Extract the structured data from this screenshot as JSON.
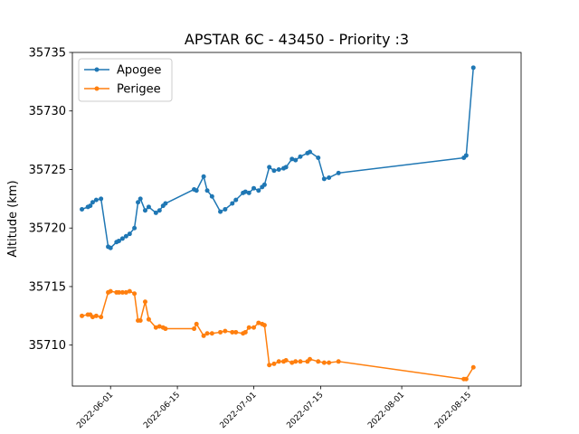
{
  "chart_data": {
    "type": "line",
    "title": "APSTAR 6C - 43450 - Priority :3",
    "xlabel": "",
    "ylabel": "Altitude (km)",
    "x_type": "date",
    "xlim": [
      "2022-05-24",
      "2022-08-26"
    ],
    "ylim": [
      35706.5,
      35735
    ],
    "yticks": [
      35710,
      35715,
      35720,
      35725,
      35730,
      35735
    ],
    "xticks": [
      "2022-06-01",
      "2022-06-15",
      "2022-07-01",
      "2022-07-15",
      "2022-08-01",
      "2022-08-15"
    ],
    "grid": false,
    "legend_position": "top-left",
    "colors": {
      "Apogee": "#1f77b4",
      "Perigee": "#ff7f0e"
    },
    "series": [
      {
        "name": "Apogee",
        "points": [
          [
            "2022-05-26T00:00",
            35721.6
          ],
          [
            "2022-05-27T06:00",
            35721.8
          ],
          [
            "2022-05-27T18:00",
            35721.9
          ],
          [
            "2022-05-28T06:00",
            35722.2
          ],
          [
            "2022-05-29T00:00",
            35722.4
          ],
          [
            "2022-05-30T00:00",
            35722.5
          ],
          [
            "2022-05-31T12:00",
            35718.4
          ],
          [
            "2022-06-01T00:00",
            35718.3
          ],
          [
            "2022-06-02T06:00",
            35718.8
          ],
          [
            "2022-06-02T18:00",
            35718.9
          ],
          [
            "2022-06-03T12:00",
            35719.1
          ],
          [
            "2022-06-04T06:00",
            35719.3
          ],
          [
            "2022-06-05T00:00",
            35719.5
          ],
          [
            "2022-06-06T00:00",
            35720.0
          ],
          [
            "2022-06-06T18:00",
            35722.2
          ],
          [
            "2022-06-07T06:00",
            35722.5
          ],
          [
            "2022-06-08T06:00",
            35721.5
          ],
          [
            "2022-06-09T00:00",
            35721.8
          ],
          [
            "2022-06-10T12:00",
            35721.3
          ],
          [
            "2022-06-11T06:00",
            35721.5
          ],
          [
            "2022-06-12T00:00",
            35721.9
          ],
          [
            "2022-06-12T12:00",
            35722.1
          ],
          [
            "2022-06-18T12:00",
            35723.3
          ],
          [
            "2022-06-19T00:00",
            35723.2
          ],
          [
            "2022-06-20T12:00",
            35724.4
          ],
          [
            "2022-06-21T06:00",
            35723.2
          ],
          [
            "2022-06-22T06:00",
            35722.7
          ],
          [
            "2022-06-24T00:00",
            35721.4
          ],
          [
            "2022-06-25T00:00",
            35721.6
          ],
          [
            "2022-06-26T12:00",
            35722.1
          ],
          [
            "2022-06-27T06:00",
            35722.4
          ],
          [
            "2022-06-28T18:00",
            35723.0
          ],
          [
            "2022-06-29T06:00",
            35723.1
          ],
          [
            "2022-06-30T00:00",
            35723.0
          ],
          [
            "2022-07-01T00:00",
            35723.4
          ],
          [
            "2022-07-02T00:00",
            35723.2
          ],
          [
            "2022-07-02T18:00",
            35723.5
          ],
          [
            "2022-07-03T06:00",
            35723.7
          ],
          [
            "2022-07-04T06:00",
            35725.2
          ],
          [
            "2022-07-05T06:00",
            35724.9
          ],
          [
            "2022-07-06T06:00",
            35725.0
          ],
          [
            "2022-07-07T06:00",
            35725.1
          ],
          [
            "2022-07-07T18:00",
            35725.2
          ],
          [
            "2022-07-09T00:00",
            35725.9
          ],
          [
            "2022-07-09T18:00",
            35725.8
          ],
          [
            "2022-07-10T18:00",
            35726.1
          ],
          [
            "2022-07-12T06:00",
            35726.4
          ],
          [
            "2022-07-12T18:00",
            35726.5
          ],
          [
            "2022-07-14T12:00",
            35726.0
          ],
          [
            "2022-07-15T18:00",
            35724.2
          ],
          [
            "2022-07-16T18:00",
            35724.3
          ],
          [
            "2022-07-18T18:00",
            35724.7
          ],
          [
            "2022-08-14T00:00",
            35726.0
          ],
          [
            "2022-08-14T12:00",
            35726.2
          ],
          [
            "2022-08-16T00:00",
            35733.7
          ]
        ]
      },
      {
        "name": "Perigee",
        "points": [
          [
            "2022-05-26T00:00",
            35712.5
          ],
          [
            "2022-05-27T06:00",
            35712.6
          ],
          [
            "2022-05-27T18:00",
            35712.6
          ],
          [
            "2022-05-28T06:00",
            35712.4
          ],
          [
            "2022-05-29T00:00",
            35712.5
          ],
          [
            "2022-05-30T00:00",
            35712.4
          ],
          [
            "2022-05-31T12:00",
            35714.5
          ],
          [
            "2022-06-01T00:00",
            35714.6
          ],
          [
            "2022-06-02T06:00",
            35714.5
          ],
          [
            "2022-06-02T18:00",
            35714.5
          ],
          [
            "2022-06-03T12:00",
            35714.5
          ],
          [
            "2022-06-04T06:00",
            35714.5
          ],
          [
            "2022-06-05T00:00",
            35714.6
          ],
          [
            "2022-06-06T00:00",
            35714.4
          ],
          [
            "2022-06-06T18:00",
            35712.1
          ],
          [
            "2022-06-07T06:00",
            35712.1
          ],
          [
            "2022-06-08T06:00",
            35713.7
          ],
          [
            "2022-06-09T00:00",
            35712.2
          ],
          [
            "2022-06-10T12:00",
            35711.5
          ],
          [
            "2022-06-11T06:00",
            35711.6
          ],
          [
            "2022-06-12T00:00",
            35711.5
          ],
          [
            "2022-06-12T12:00",
            35711.4
          ],
          [
            "2022-06-18T12:00",
            35711.4
          ],
          [
            "2022-06-19T00:00",
            35711.8
          ],
          [
            "2022-06-20T12:00",
            35710.8
          ],
          [
            "2022-06-21T06:00",
            35711.0
          ],
          [
            "2022-06-22T06:00",
            35711.0
          ],
          [
            "2022-06-24T00:00",
            35711.1
          ],
          [
            "2022-06-25T00:00",
            35711.2
          ],
          [
            "2022-06-26T12:00",
            35711.1
          ],
          [
            "2022-06-27T06:00",
            35711.1
          ],
          [
            "2022-06-28T18:00",
            35711.0
          ],
          [
            "2022-06-29T06:00",
            35711.1
          ],
          [
            "2022-06-30T00:00",
            35711.5
          ],
          [
            "2022-07-01T00:00",
            35711.5
          ],
          [
            "2022-07-02T00:00",
            35711.9
          ],
          [
            "2022-07-02T18:00",
            35711.8
          ],
          [
            "2022-07-03T06:00",
            35711.7
          ],
          [
            "2022-07-04T06:00",
            35708.3
          ],
          [
            "2022-07-05T06:00",
            35708.4
          ],
          [
            "2022-07-06T06:00",
            35708.6
          ],
          [
            "2022-07-07T06:00",
            35708.6
          ],
          [
            "2022-07-07T18:00",
            35708.7
          ],
          [
            "2022-07-09T00:00",
            35708.5
          ],
          [
            "2022-07-09T18:00",
            35708.6
          ],
          [
            "2022-07-10T18:00",
            35708.6
          ],
          [
            "2022-07-12T06:00",
            35708.6
          ],
          [
            "2022-07-12T18:00",
            35708.8
          ],
          [
            "2022-07-14T12:00",
            35708.6
          ],
          [
            "2022-07-15T18:00",
            35708.5
          ],
          [
            "2022-07-16T18:00",
            35708.5
          ],
          [
            "2022-07-18T18:00",
            35708.6
          ],
          [
            "2022-08-14T00:00",
            35707.1
          ],
          [
            "2022-08-14T12:00",
            35707.1
          ],
          [
            "2022-08-16T00:00",
            35708.1
          ]
        ]
      }
    ]
  }
}
